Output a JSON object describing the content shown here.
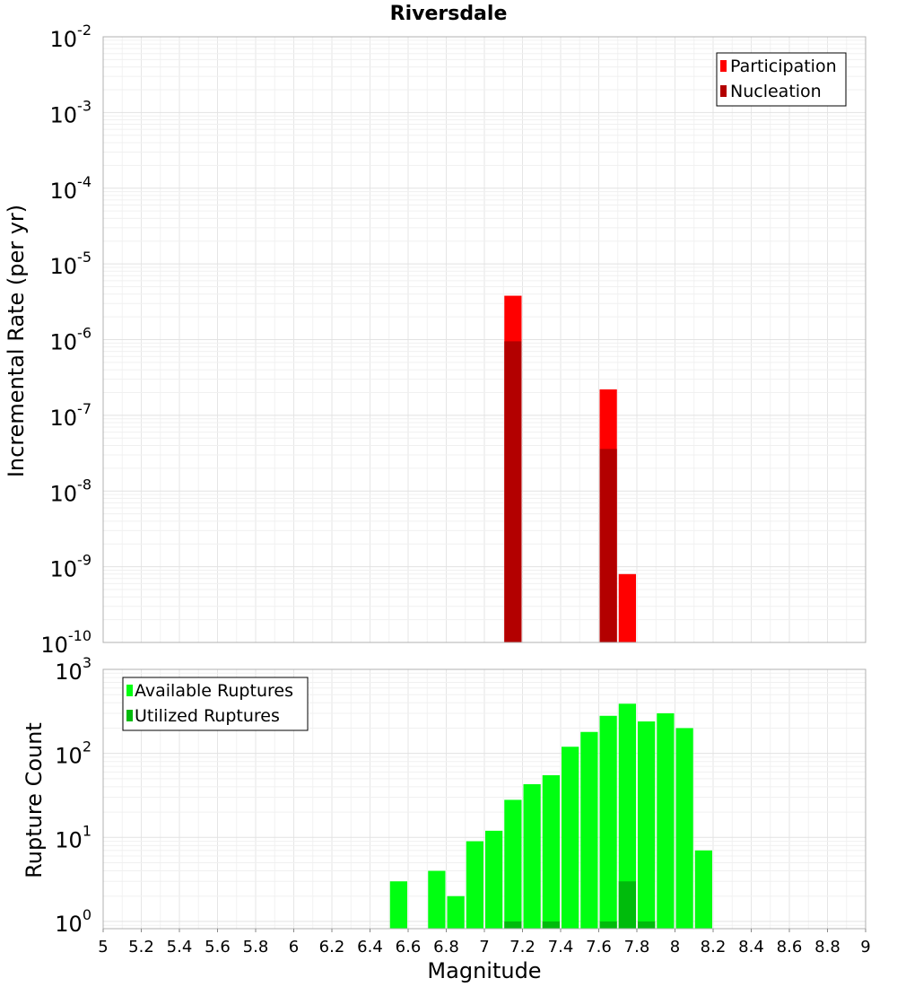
{
  "chart_data": [
    {
      "type": "bar",
      "title": "Riversdale",
      "ylabel": "Incremental Rate (per yr)",
      "yscale": "log",
      "ylim": [
        1e-10,
        0.01
      ],
      "xlim": [
        5,
        9
      ],
      "bar_width": 0.1,
      "grid": true,
      "legend_position": "top-right",
      "series": [
        {
          "name": "Participation",
          "color": "#ff0000",
          "points": [
            [
              7.15,
              3.8e-06
            ],
            [
              7.65,
              2.2e-07
            ],
            [
              7.75,
              8e-10
            ]
          ]
        },
        {
          "name": "Nucleation",
          "color": "#b30000",
          "points": [
            [
              7.15,
              9.5e-07
            ],
            [
              7.65,
              3.6e-08
            ]
          ]
        }
      ]
    },
    {
      "type": "bar",
      "xlabel": "Magnitude",
      "ylabel": "Rupture Count",
      "yscale": "log",
      "ylim": [
        0.82,
        1000
      ],
      "xlim": [
        5,
        9
      ],
      "bar_width": 0.1,
      "grid": true,
      "legend_position": "top-left",
      "x_ticks": [
        "5",
        "5.2",
        "5.4",
        "5.6",
        "5.8",
        "6",
        "6.2",
        "6.4",
        "6.6",
        "6.8",
        "7",
        "7.2",
        "7.4",
        "7.6",
        "7.8",
        "8",
        "8.2",
        "8.4",
        "8.6",
        "8.8",
        "9"
      ],
      "series": [
        {
          "name": "Available Ruptures",
          "color": "#00ff11",
          "points": [
            [
              6.55,
              3
            ],
            [
              6.75,
              4
            ],
            [
              6.85,
              2
            ],
            [
              6.95,
              9
            ],
            [
              7.05,
              12
            ],
            [
              7.15,
              28
            ],
            [
              7.25,
              43
            ],
            [
              7.35,
              55
            ],
            [
              7.45,
              120
            ],
            [
              7.55,
              180
            ],
            [
              7.65,
              280
            ],
            [
              7.75,
              390
            ],
            [
              7.85,
              240
            ],
            [
              7.95,
              300
            ],
            [
              8.05,
              200
            ],
            [
              8.15,
              7
            ]
          ]
        },
        {
          "name": "Utilized Ruptures",
          "color": "#00bb0c",
          "points": [
            [
              7.15,
              1
            ],
            [
              7.35,
              1
            ],
            [
              7.65,
              1
            ],
            [
              7.75,
              3
            ],
            [
              7.85,
              1
            ]
          ]
        }
      ]
    }
  ]
}
